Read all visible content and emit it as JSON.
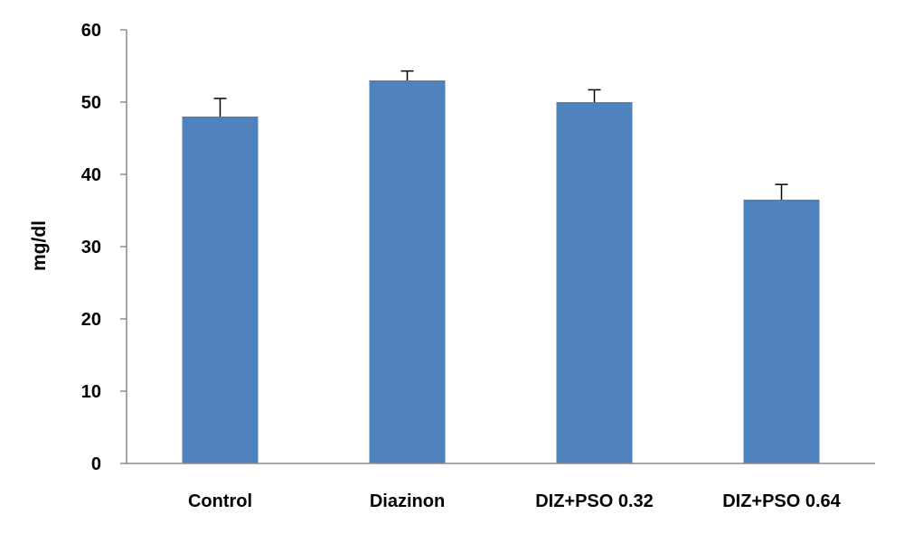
{
  "chart_data": {
    "type": "bar",
    "categories": [
      "Control",
      "Diazinon",
      "DIZ+PSO 0.32",
      "DIZ+PSO 0.64"
    ],
    "values": [
      48,
      53,
      50,
      36.5
    ],
    "error_plus": [
      2.5,
      1.3,
      1.7,
      2.1
    ],
    "ylabel": "mg/dl",
    "xlabel": "",
    "ylim": [
      0,
      60
    ],
    "yticks": [
      0,
      10,
      20,
      30,
      40,
      50,
      60
    ],
    "bar_color": "#4f81bd",
    "grid": false,
    "legend": "none"
  }
}
